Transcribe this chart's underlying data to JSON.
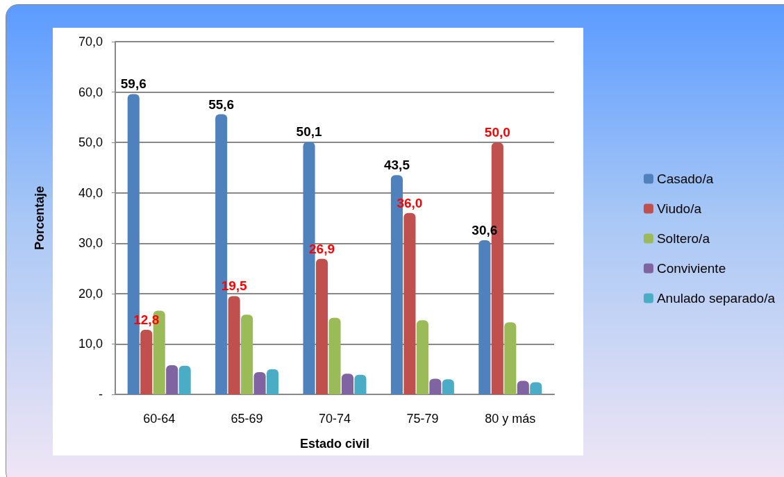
{
  "chart_data": {
    "type": "bar",
    "xlabel": "Estado civil",
    "ylabel": "Porcentaje",
    "categories": [
      "60-64",
      "65-69",
      "70-74",
      "75-79",
      "80 y más"
    ],
    "series": [
      {
        "name": "Casado/a",
        "color": "#4f81bd",
        "values": [
          59.6,
          55.6,
          50.1,
          43.5,
          30.6
        ],
        "value_labels": [
          "59,6",
          "55,6",
          "50,1",
          "43,5",
          "30,6"
        ]
      },
      {
        "name": "Viudo/a",
        "color": "#c0504d",
        "values": [
          12.8,
          19.5,
          26.9,
          36.0,
          50.0
        ],
        "value_labels": [
          "12,8",
          "19,5",
          "26,9",
          "36,0",
          "50,0"
        ]
      },
      {
        "name": "Soltero/a",
        "color": "#9bbb59",
        "values": [
          16.6,
          15.8,
          15.2,
          14.7,
          14.3
        ]
      },
      {
        "name": "Conviviente",
        "color": "#8064a2",
        "values": [
          5.8,
          4.4,
          4.1,
          3.1,
          2.7
        ]
      },
      {
        "name": "Anulado separado/a",
        "color": "#4bacc6",
        "values": [
          5.7,
          5.0,
          3.9,
          3.0,
          2.4
        ]
      }
    ],
    "ylim": [
      0,
      70
    ],
    "yticks": [
      {
        "value": 0,
        "label": "-"
      },
      {
        "value": 10,
        "label": "10,0"
      },
      {
        "value": 20,
        "label": "20,0"
      },
      {
        "value": 30,
        "label": "30,0"
      },
      {
        "value": 40,
        "label": "40,0"
      },
      {
        "value": 50,
        "label": "50,0"
      },
      {
        "value": 60,
        "label": "60,0"
      },
      {
        "value": 70,
        "label": "70,0"
      }
    ],
    "grid": "y",
    "legend": "right"
  }
}
